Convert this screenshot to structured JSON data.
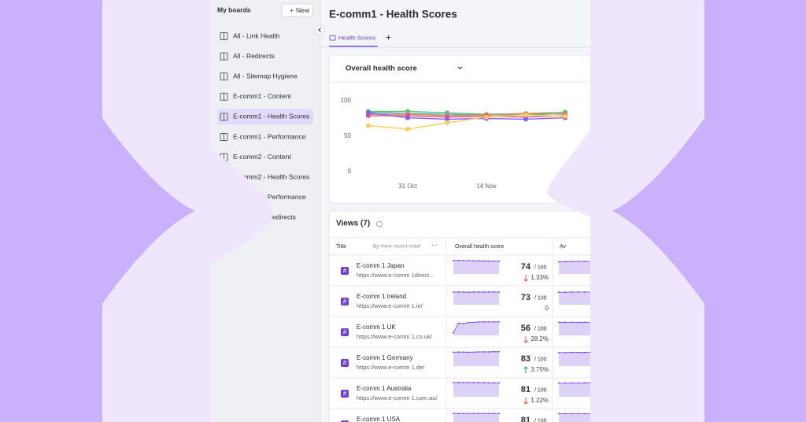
{
  "sidebar": {
    "title": "My boards",
    "new_button": "New",
    "selected": 4,
    "items": [
      "All - Link Health",
      "All - Redirects",
      "All - Sitemap Hygiene",
      "E-comm1 - Content",
      "E-comm1 - Health Scores",
      "E-comm1 - Performance",
      "E-comm2 - Content",
      "E-comm2 - Health Scores",
      "E-comm2 - Performance",
      "E-comm2 - Redirects"
    ]
  },
  "header": {
    "title": "E-comm1 - Health Scores",
    "tab": "Health Scores"
  },
  "chart_data": {
    "type": "line",
    "title": "Overall health score",
    "categories": [
      null,
      "31 Oct",
      null,
      "14 Nov",
      null,
      null
    ],
    "series": [
      {
        "color": "#5cc46b",
        "values": [
          85,
          85,
          83,
          81,
          82,
          84
        ]
      },
      {
        "color": "#4db7c8",
        "values": [
          84,
          82,
          81,
          80,
          80,
          82
        ]
      },
      {
        "color": "#e8845a",
        "values": [
          81,
          81,
          79,
          80,
          82,
          81
        ]
      },
      {
        "color": "#e0527a",
        "values": [
          79,
          79,
          77,
          78,
          77,
          79
        ]
      },
      {
        "color": "#8a5cf0",
        "values": [
          83,
          76,
          74,
          75,
          74,
          76
        ]
      },
      {
        "color": "#f5d15b",
        "values": [
          65,
          60,
          69,
          77,
          80,
          78
        ]
      }
    ],
    "ylim": [
      0,
      100
    ],
    "yticks": [
      0,
      50,
      100
    ],
    "grid": false
  },
  "views": {
    "title": "Views (7)",
    "columns": [
      "Title",
      "By most recent crawl",
      "Overall health score",
      "Av"
    ],
    "score_suffix": "/ 100",
    "rows": [
      {
        "name": "E-comm 1 Japan",
        "url": "https://www.e-comm 1direct...",
        "score": 74,
        "change": "1.33%",
        "direction": "down",
        "spark": [
          78,
          78,
          77,
          77,
          76,
          76,
          75,
          75,
          74,
          74
        ],
        "spark2": [
          70,
          71,
          72,
          72,
          73,
          73,
          73,
          74
        ]
      },
      {
        "name": "E-comm 1 Ireland",
        "url": "https://www.e-comm 1.ie/",
        "score": 73,
        "change": "0",
        "direction": null,
        "spark": [
          73,
          73,
          73,
          72,
          73,
          73,
          73,
          73,
          73,
          73
        ],
        "spark2": [
          72,
          72,
          73,
          73,
          73,
          73,
          73,
          73
        ]
      },
      {
        "name": "E-comm 1 UK",
        "url": "https://www.e-comm 1.co.uk/",
        "score": 56,
        "change": "28.2%",
        "direction": "down",
        "spark": [
          15,
          70,
          68,
          74,
          75,
          78,
          78,
          78,
          78,
          78
        ],
        "spark2": [
          75,
          76,
          76,
          75,
          76,
          76,
          75,
          76
        ]
      },
      {
        "name": "E-comm 1 Germany",
        "url": "https://www.e-comm 1.de/",
        "score": 83,
        "change": "3.75%",
        "direction": "up",
        "spark": [
          80,
          81,
          81,
          80,
          81,
          82,
          82,
          82,
          83,
          83
        ],
        "spark2": [
          78,
          78,
          79,
          79,
          79,
          80,
          80,
          80
        ]
      },
      {
        "name": "E-comm 1 Australia",
        "url": "https://www.e-comm 1.com.au/",
        "score": 81,
        "change": "1.22%",
        "direction": "down",
        "spark": [
          82,
          82,
          82,
          82,
          82,
          82,
          82,
          81,
          81,
          81
        ],
        "spark2": [
          80,
          80,
          80,
          80,
          81,
          81,
          81,
          81
        ]
      },
      {
        "name": "E-comm 1 USA",
        "score": 81,
        "spark": [
          81,
          81,
          81,
          81,
          81,
          81,
          81,
          81,
          81,
          81
        ],
        "spark2": [
          80,
          80,
          80,
          80,
          80,
          80,
          80,
          80
        ]
      }
    ]
  }
}
